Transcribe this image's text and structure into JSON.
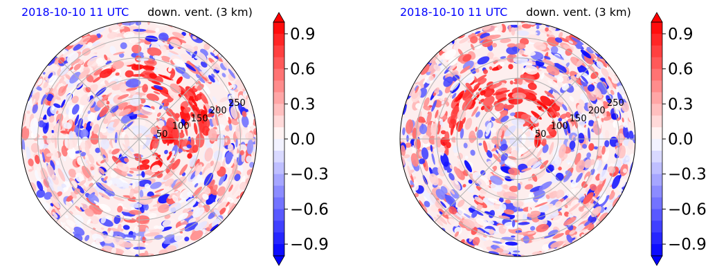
{
  "colors": {
    "title_time": "#0000ff",
    "negative": "#0000ff",
    "positive": "#ff0000",
    "neutral": "#ffffff",
    "grid": "#b0b0b0",
    "outline": "#000000"
  },
  "chart_data": [
    {
      "type": "heatmap",
      "projection": "polar",
      "title_left": "2018-10-10 11 UTC",
      "title_right": "down. vent. (3 km)",
      "radial_ticks": [
        "50",
        "100",
        "150",
        "200",
        "250"
      ],
      "radial_values_km": [
        50,
        100,
        150,
        200,
        250
      ],
      "rmax_km": 290,
      "angular_grid_deg": [
        0,
        45,
        90,
        135,
        180,
        225,
        270,
        315
      ],
      "grid": true,
      "colorbar": {
        "ticks": [
          "0.9",
          "0.6",
          "0.3",
          "0.0",
          "−0.3",
          "−0.6",
          "−0.9"
        ],
        "tick_values": [
          0.9,
          0.6,
          0.3,
          0.0,
          -0.3,
          -0.6,
          -0.9
        ],
        "vmin": -1.0,
        "vmax": 1.0,
        "levels": 20,
        "extend": "both",
        "cmap": "bwr"
      }
    },
    {
      "type": "heatmap",
      "projection": "polar",
      "title_left": "2018-10-10 11 UTC",
      "title_right": "down. vent. (3 km)",
      "radial_ticks": [
        "50",
        "100",
        "150",
        "200",
        "250"
      ],
      "radial_values_km": [
        50,
        100,
        150,
        200,
        250
      ],
      "rmax_km": 290,
      "angular_grid_deg": [
        0,
        45,
        90,
        135,
        180,
        225,
        270,
        315
      ],
      "grid": true,
      "colorbar": {
        "ticks": [
          "0.9",
          "0.6",
          "0.3",
          "0.0",
          "−0.3",
          "−0.6",
          "−0.9"
        ],
        "tick_values": [
          0.9,
          0.6,
          0.3,
          0.0,
          -0.3,
          -0.6,
          -0.9
        ],
        "vmin": -1.0,
        "vmax": 1.0,
        "levels": 20,
        "extend": "both",
        "cmap": "bwr"
      }
    }
  ]
}
